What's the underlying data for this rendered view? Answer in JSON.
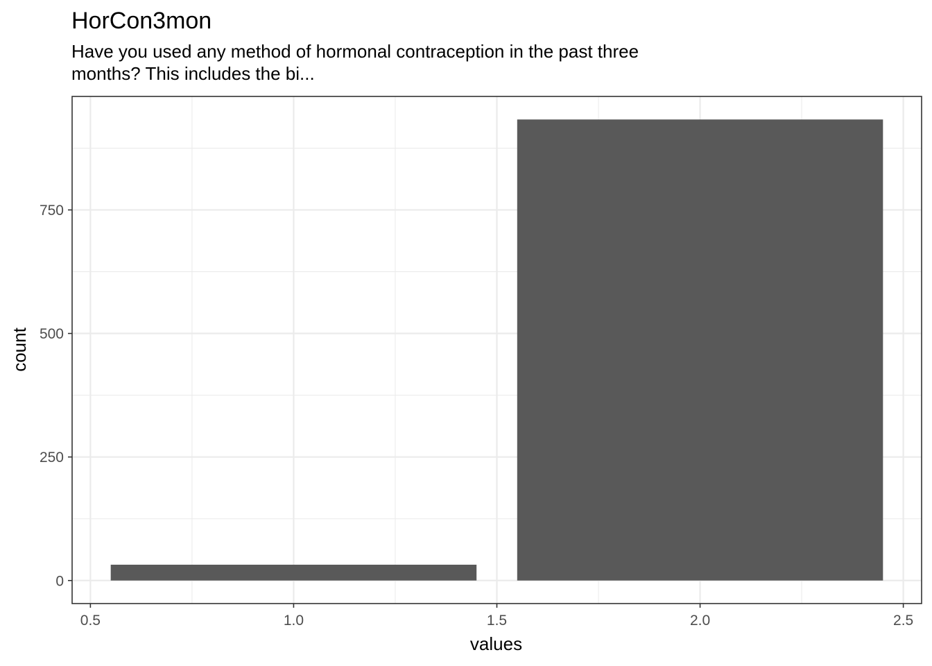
{
  "chart_data": {
    "type": "bar",
    "title": "HorCon3mon",
    "subtitle_lines": [
      "Have you used any method of hormonal contraception in the past three",
      "months? This includes the bi..."
    ],
    "xlabel": "values",
    "ylabel": "count",
    "x": [
      1,
      2
    ],
    "values": [
      32,
      933
    ],
    "bar_width": 0.9,
    "xlim": [
      0.455,
      2.545
    ],
    "ylim": [
      -46.65,
      979.65
    ],
    "x_ticks": [
      0.5,
      1.0,
      1.5,
      2.0,
      2.5
    ],
    "x_tick_labels": [
      "0.5",
      "1.0",
      "1.5",
      "2.0",
      "2.5"
    ],
    "y_ticks": [
      0,
      250,
      500,
      750
    ],
    "y_tick_labels": [
      "0",
      "250",
      "500",
      "750"
    ],
    "grid": true,
    "bar_color": "#595959",
    "grid_color": "#ebebeb",
    "panel_border_color": "#333333"
  }
}
